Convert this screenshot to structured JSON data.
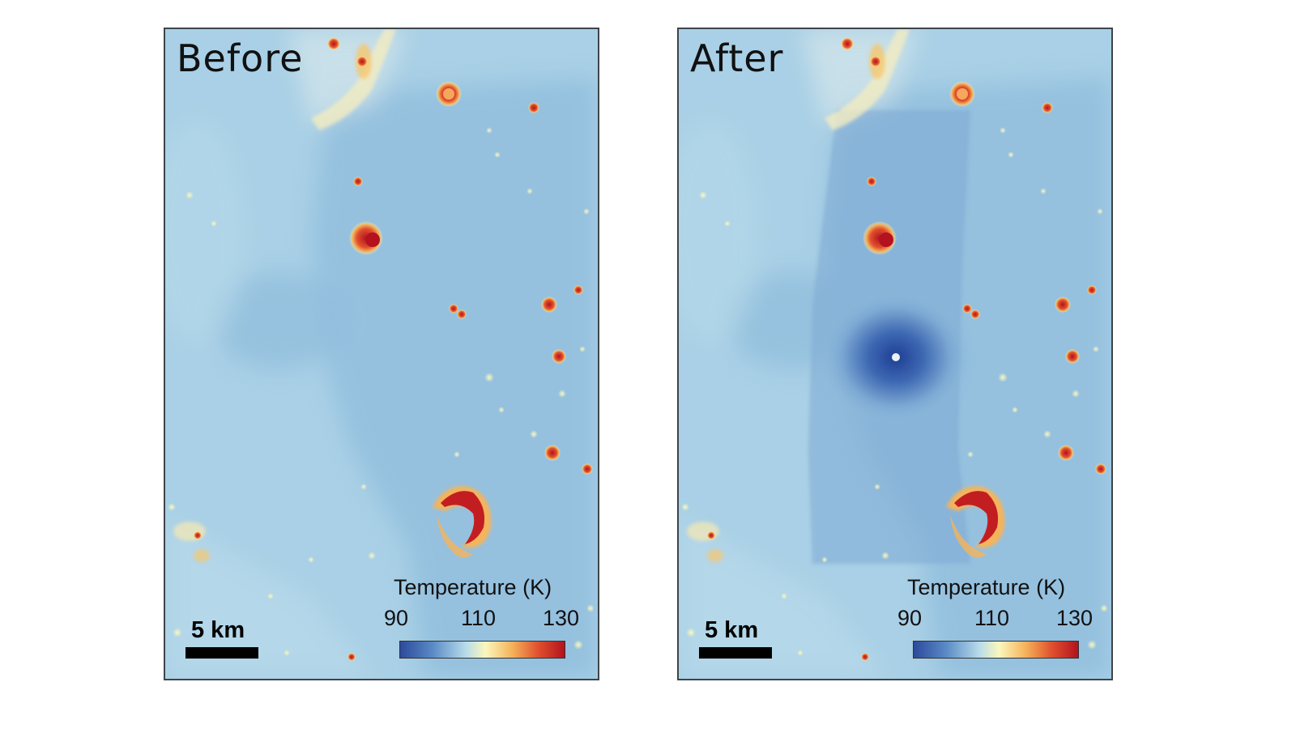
{
  "panels": [
    {
      "title": "Before",
      "scale_label": "5 km",
      "colorbar": {
        "title": "Temperature (K)",
        "ticks": [
          "90",
          "110",
          "130"
        ],
        "min": 90,
        "max": 130
      }
    },
    {
      "title": "After",
      "scale_label": "5 km",
      "colorbar": {
        "title": "Temperature (K)",
        "ticks": [
          "90",
          "110",
          "130"
        ],
        "min": 90,
        "max": 130
      }
    }
  ],
  "colors": {
    "cold": "#2c4a9c",
    "neutral": "#fbf7bd",
    "hot": "#b3121e",
    "background_surface": "#a9d0e6"
  }
}
